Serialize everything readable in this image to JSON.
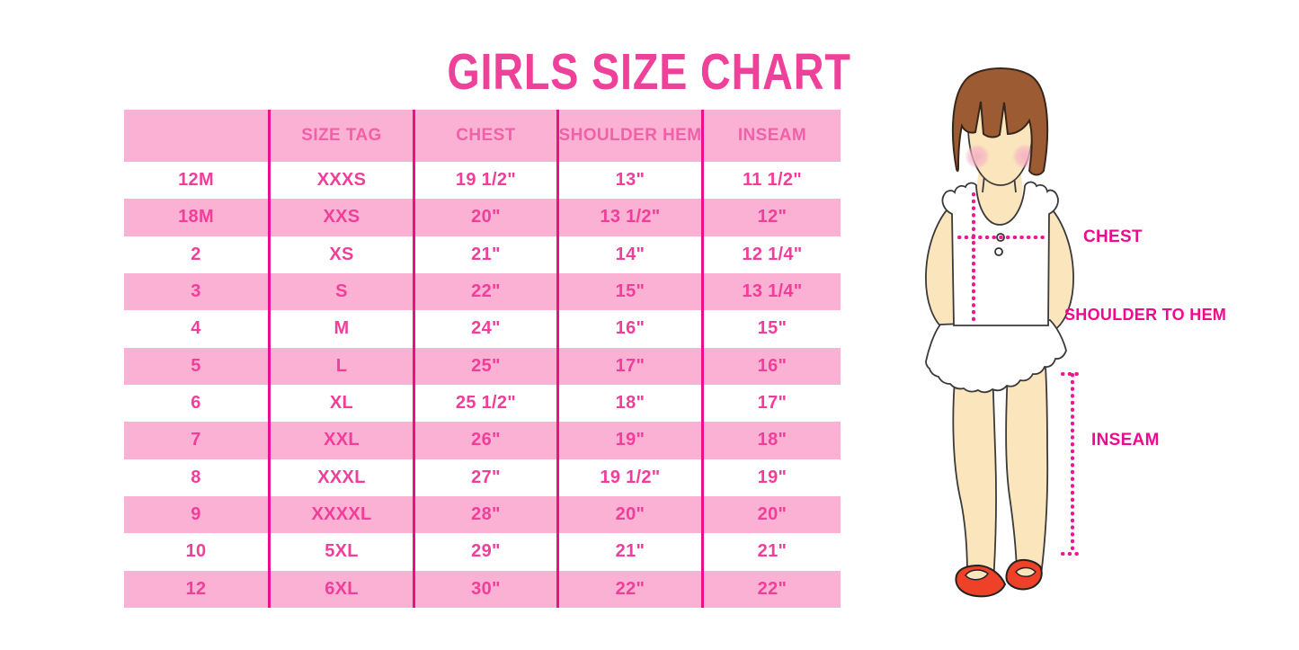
{
  "title": "GIRLS SIZE CHART",
  "colors": {
    "title_pink": "#F0419A",
    "row_pink": "#FBB1D3",
    "separator_pink": "#EA108C",
    "cell_text_pink": "#F23E9B",
    "header_text_pink": "#F160A8",
    "diagram_label_magenta": "#F2078F",
    "dotted_line_pink": "#F01592",
    "hair_brown": "#9C5B33",
    "skin_tone": "#FBE5BD",
    "shoe_red": "#EF4128"
  },
  "chart_data": {
    "type": "table",
    "title": "GIRLS SIZE CHART",
    "columns": [
      "",
      "SIZE TAG",
      "CHEST",
      "SHOULDER HEM",
      "INSEAM"
    ],
    "rows": [
      [
        "12M",
        "XXXS",
        "19 1/2\"",
        "13\"",
        "11 1/2\""
      ],
      [
        "18M",
        "XXS",
        "20\"",
        "13 1/2\"",
        "12\""
      ],
      [
        "2",
        "XS",
        "21\"",
        "14\"",
        "12 1/4\""
      ],
      [
        "3",
        "S",
        "22\"",
        "15\"",
        "13 1/4\""
      ],
      [
        "4",
        "M",
        "24\"",
        "16\"",
        "15\""
      ],
      [
        "5",
        "L",
        "25\"",
        "17\"",
        "16\""
      ],
      [
        "6",
        "XL",
        "25 1/2\"",
        "18\"",
        "17\""
      ],
      [
        "7",
        "XXL",
        "26\"",
        "19\"",
        "18\""
      ],
      [
        "8",
        "XXXL",
        "27\"",
        "19 1/2\"",
        "19\""
      ],
      [
        "9",
        "XXXXL",
        "28\"",
        "20\"",
        "20\""
      ],
      [
        "10",
        "5XL",
        "29\"",
        "21\"",
        "21\""
      ],
      [
        "12",
        "6XL",
        "30\"",
        "22\"",
        "22\""
      ]
    ],
    "row_striping": "header pink, then alternating white/pink starting with white",
    "grid": "internal vertical separators only, no outer border"
  },
  "diagram": {
    "labels": {
      "chest": "CHEST",
      "shoulder_to_hem": "SHOULDER TO HEM",
      "inseam": "INSEAM"
    }
  }
}
